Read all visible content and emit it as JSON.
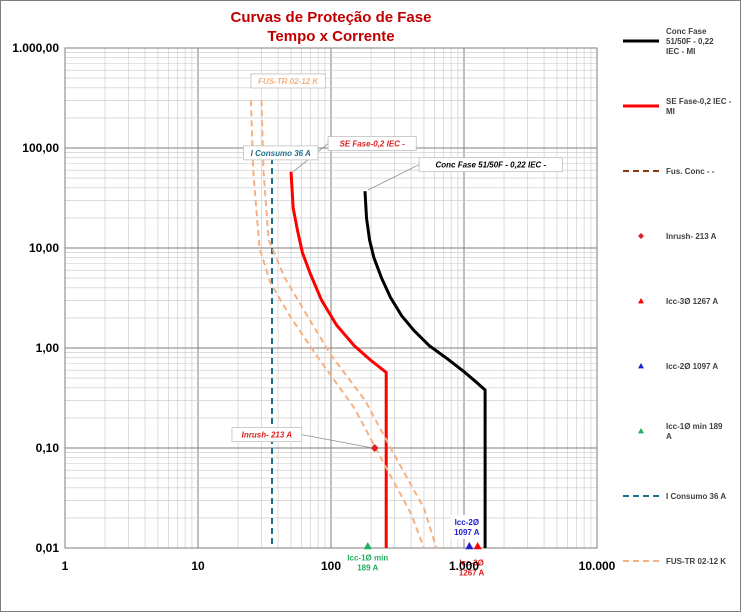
{
  "chart_data": {
    "type": "line",
    "title": [
      "Curvas de Proteção de Fase",
      "Tempo x Corrente"
    ],
    "x_scale": "log",
    "y_scale": "log",
    "xlim": [
      1,
      10000
    ],
    "ylim": [
      0.01,
      1000
    ],
    "x_ticks": [
      {
        "value": 1,
        "label": "1"
      },
      {
        "value": 10,
        "label": "10"
      },
      {
        "value": 100,
        "label": "100"
      },
      {
        "value": 1000,
        "label": "1.000"
      },
      {
        "value": 10000,
        "label": "10.000"
      }
    ],
    "y_ticks": [
      {
        "value": 0.01,
        "label": "0,01"
      },
      {
        "value": 0.1,
        "label": "0,10"
      },
      {
        "value": 1,
        "label": "1,00"
      },
      {
        "value": 10,
        "label": "10,00"
      },
      {
        "value": 100,
        "label": "100,00"
      },
      {
        "value": 1000,
        "label": "1.000,00"
      }
    ],
    "grid": true,
    "legend_position": "right",
    "series": [
      {
        "name": "Conc Fase 51/50F - 0,22 IEC - MI",
        "legend_lines": [
          "Conc Fase",
          "51/50F - 0,22",
          "IEC - MI"
        ],
        "color": "#000000",
        "style": "solid",
        "width": 3,
        "points": [
          [
            180,
            37
          ],
          [
            185,
            20
          ],
          [
            195,
            12
          ],
          [
            210,
            8
          ],
          [
            240,
            5
          ],
          [
            280,
            3.2
          ],
          [
            340,
            2.1
          ],
          [
            420,
            1.5
          ],
          [
            550,
            1.05
          ],
          [
            750,
            0.78
          ],
          [
            1000,
            0.58
          ],
          [
            1250,
            0.45
          ],
          [
            1440,
            0.38
          ],
          [
            1440,
            0.05
          ],
          [
            1440,
            0.01
          ]
        ]
      },
      {
        "name": "SE Fase-0,2 IEC - MI",
        "legend_lines": [
          "SE Fase-0,2 IEC -",
          "MI"
        ],
        "color": "#ff0000",
        "style": "solid",
        "width": 3,
        "points": [
          [
            50,
            58
          ],
          [
            52,
            25
          ],
          [
            56,
            15
          ],
          [
            61,
            9
          ],
          [
            70,
            5.5
          ],
          [
            85,
            3
          ],
          [
            110,
            1.7
          ],
          [
            150,
            1.05
          ],
          [
            200,
            0.75
          ],
          [
            260,
            0.57
          ],
          [
            260,
            0.2
          ],
          [
            260,
            0.01
          ]
        ]
      },
      {
        "name": "Fus. Conc - -",
        "legend_lines": [
          "Fus. Conc - -"
        ],
        "color": "#843c0c",
        "style": "dashed",
        "width": 2,
        "points": []
      },
      {
        "name": "I Consumo 36 A",
        "legend_lines": [
          "I Consumo 36 A"
        ],
        "color": "#1f6e8c",
        "style": "dashed",
        "width": 2,
        "points": [
          [
            36,
            100
          ],
          [
            36,
            0.01
          ]
        ]
      },
      {
        "name": "FUS-TR 02-12 K",
        "legend_lines": [
          "FUS-TR 02-12 K"
        ],
        "color": "#f4b183",
        "style": "dashed",
        "width": 2,
        "band": [
          [
            [
              25,
              300
            ],
            [
              26,
              60
            ],
            [
              29,
              10
            ],
            [
              35,
              4.5
            ],
            [
              50,
              2
            ],
            [
              80,
              0.8
            ],
            [
              150,
              0.25
            ],
            [
              250,
              0.07
            ],
            [
              400,
              0.022
            ],
            [
              500,
              0.01
            ]
          ],
          [
            [
              30,
              300
            ],
            [
              31,
              60
            ],
            [
              34,
              12
            ],
            [
              45,
              5
            ],
            [
              65,
              2.2
            ],
            [
              100,
              0.85
            ],
            [
              180,
              0.3
            ],
            [
              300,
              0.085
            ],
            [
              500,
              0.025
            ],
            [
              620,
              0.01
            ]
          ]
        ]
      }
    ],
    "markers": [
      {
        "name": "Inrush- 213 A",
        "legend_lines": [
          "Inrush- 213 A"
        ],
        "x": 213,
        "y": 0.1,
        "shape": "diamond",
        "color": "#e02020"
      },
      {
        "name": "Icc-3Ø 1267 A",
        "legend_lines": [
          "Icc-3Ø 1267 A"
        ],
        "x": 1267,
        "y": 0.01,
        "shape": "triangle",
        "color": "#ff0000"
      },
      {
        "name": "Icc-2Ø 1097 A",
        "legend_lines": [
          "Icc-2Ø 1097 A"
        ],
        "x": 1097,
        "y": 0.01,
        "shape": "triangle",
        "color": "#2020d0"
      },
      {
        "name": "Icc-1Ø min 189 A",
        "legend_lines": [
          "Icc-1Ø min 189",
          "A"
        ],
        "x": 189,
        "y": 0.01,
        "shape": "triangle",
        "color": "#20b060"
      }
    ],
    "annotations": [
      {
        "text": "FUS-TR 02-12 K",
        "color": "#f4b183",
        "x": 25,
        "y": 550,
        "anchor_x": 27,
        "anchor_y": 450
      },
      {
        "text": "SE Fase-0,2 IEC -",
        "color": "#e02020",
        "x": 95,
        "y": 130,
        "anchor_x": 52,
        "anchor_y": 58
      },
      {
        "text": "I Consumo 36 A",
        "color": "#1f6e8c",
        "x": 22,
        "y": 105,
        "anchor_x": 36,
        "anchor_y": 95
      },
      {
        "text": "Conc Fase 51/50F - 0,22 IEC -",
        "color": "#000000",
        "x": 460,
        "y": 80,
        "anchor_x": 190,
        "anchor_y": 38
      },
      {
        "text": "Inrush- 213 A",
        "color": "#e02020",
        "x": 18,
        "y": 0.16,
        "anchor_x": 205,
        "anchor_y": 0.1
      }
    ],
    "marker_labels": [
      {
        "lines": [
          "Icc-2Ø",
          "1097 A"
        ],
        "color": "#2020d0",
        "x": 1050,
        "y": 0.017,
        "boxed": true
      },
      {
        "lines": [
          "Icc-1Ø min",
          "189 A"
        ],
        "color": "#20b060",
        "x": 189,
        "y": 0.0075,
        "boxed": false
      },
      {
        "lines": [
          "Icc-3Ø",
          "1267 A"
        ],
        "color": "#e02020",
        "x": 1140,
        "y": 0.0067,
        "boxed": false
      }
    ]
  }
}
